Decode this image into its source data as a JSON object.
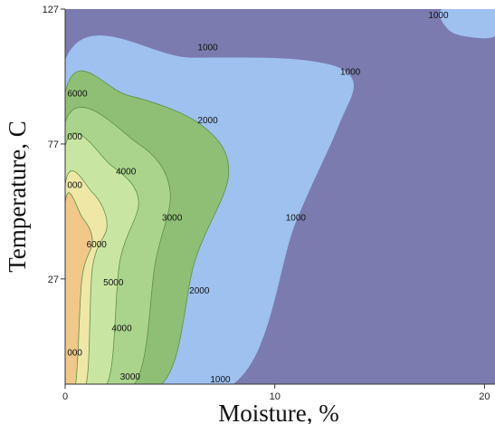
{
  "chart_data": {
    "type": "contour",
    "xlabel": "Moisture, %",
    "ylabel": "Temperature, C",
    "xlim": [
      0,
      20.5
    ],
    "ylim": [
      -12,
      127
    ],
    "x_ticks": [
      {
        "value": 0,
        "label": "0"
      },
      {
        "value": 10,
        "label": "10"
      },
      {
        "value": 20,
        "label": "20"
      }
    ],
    "y_ticks": [
      {
        "value": 27,
        "label": "27"
      },
      {
        "value": 77,
        "label": "77"
      },
      {
        "value": 127,
        "label": "127"
      }
    ],
    "levels": [
      {
        "value": 0,
        "color": "#7b7bb0"
      },
      {
        "value": 1000,
        "color": "#9ec1ef"
      },
      {
        "value": 2000,
        "color": "#8fbf74"
      },
      {
        "value": 3000,
        "color": "#aad48c"
      },
      {
        "value": 4000,
        "color": "#c8e6a2"
      },
      {
        "value": 5000,
        "color": "#efe7a6"
      },
      {
        "value": 6000,
        "color": "#efc88a"
      }
    ],
    "regions": [
      {
        "level": 1000,
        "points": [
          [
            0,
            108
          ],
          [
            6,
            109
          ],
          [
            11.5,
            108
          ],
          [
            13.7,
            101
          ],
          [
            13,
            83
          ],
          [
            11,
            48
          ],
          [
            8,
            -12
          ],
          [
            0,
            -12
          ]
        ]
      },
      {
        "level": 1000,
        "points": [
          [
            18,
            127
          ],
          [
            20.5,
            127
          ],
          [
            20.5,
            117
          ],
          [
            19,
            117
          ],
          [
            18.2,
            120
          ]
        ]
      },
      {
        "level": 2000,
        "points": [
          [
            0,
            96
          ],
          [
            3,
            95
          ],
          [
            6.5,
            84
          ],
          [
            7.8,
            66
          ],
          [
            6.2,
            34
          ],
          [
            4.6,
            -12
          ],
          [
            0,
            -12
          ]
        ]
      },
      {
        "level": 3000,
        "points": [
          [
            0,
            85
          ],
          [
            3.5,
            77
          ],
          [
            5,
            60
          ],
          [
            4.3,
            33
          ],
          [
            3.3,
            -12
          ],
          [
            0,
            -12
          ]
        ]
      },
      {
        "level": 4000,
        "points": [
          [
            0,
            76
          ],
          [
            2.2,
            69
          ],
          [
            3.5,
            56
          ],
          [
            2.6,
            33
          ],
          [
            2,
            -12
          ],
          [
            0,
            -12
          ]
        ]
      },
      {
        "level": 5000,
        "points": [
          [
            0,
            62
          ],
          [
            1.3,
            59
          ],
          [
            2,
            47
          ],
          [
            1.3,
            31
          ],
          [
            1,
            -12
          ],
          [
            0,
            -12
          ]
        ]
      },
      {
        "level": 6000,
        "points": [
          [
            0,
            55
          ],
          [
            0.8,
            50
          ],
          [
            1.3,
            41
          ],
          [
            0.8,
            27
          ],
          [
            0.5,
            -12
          ],
          [
            0,
            -12
          ]
        ]
      }
    ],
    "contour_labels": [
      {
        "x": 6.8,
        "y": 113,
        "text": "1000"
      },
      {
        "x": 13.6,
        "y": 104,
        "text": "1000"
      },
      {
        "x": 11,
        "y": 50,
        "text": "1000"
      },
      {
        "x": 7.4,
        "y": -10,
        "text": "1000"
      },
      {
        "x": 17.8,
        "y": 125,
        "text": "1000"
      },
      {
        "x": 6.8,
        "y": 86,
        "text": "2000"
      },
      {
        "x": 6.4,
        "y": 23,
        "text": "2000"
      },
      {
        "x": 3.1,
        "y": -9,
        "text": "3000"
      },
      {
        "x": 5.1,
        "y": 50,
        "text": "3000"
      },
      {
        "x": 2.9,
        "y": 67,
        "text": "4000"
      },
      {
        "x": 2.7,
        "y": 9,
        "text": "4000"
      },
      {
        "x": 2.3,
        "y": 26,
        "text": "5000"
      },
      {
        "x": 1.5,
        "y": 40,
        "text": "6000"
      },
      {
        "x": 0.1,
        "y": 96,
        "text": "6000"
      },
      {
        "x": 0.1,
        "y": 80,
        "text": "000"
      },
      {
        "x": 0.1,
        "y": 62,
        "text": "000"
      },
      {
        "x": 0.1,
        "y": 0,
        "text": "000"
      }
    ]
  }
}
